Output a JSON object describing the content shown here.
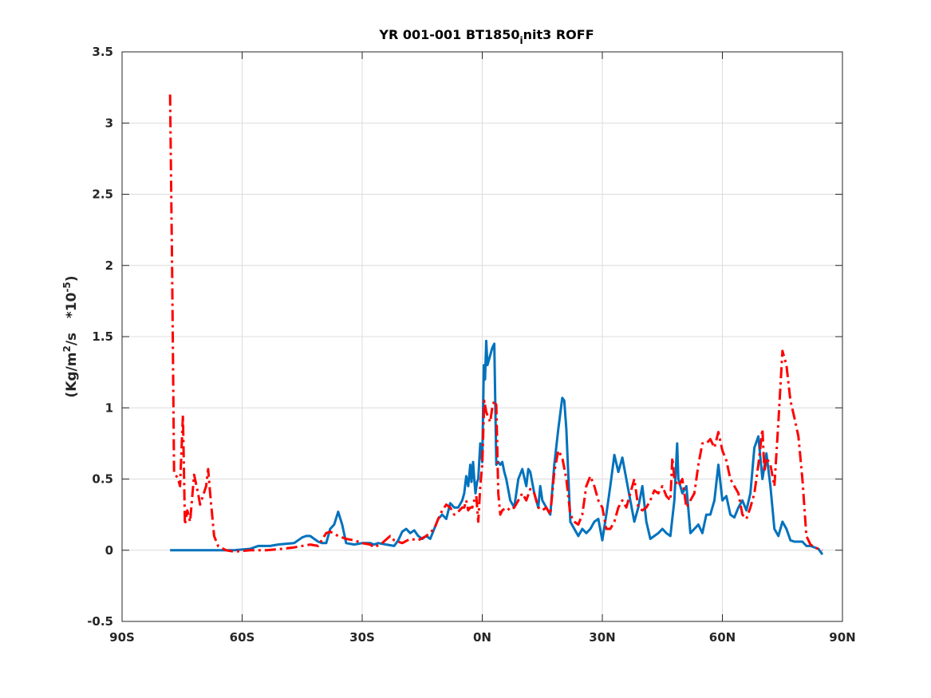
{
  "chart_data": {
    "type": "line",
    "title_parts": {
      "main": "YR 001-001 BT1850",
      "sub": "i",
      "tail": "nit3 ROFF"
    },
    "ylabel_parts": {
      "a": "(Kg/m",
      "sup1": "2",
      "b": "/s   *10",
      "sup2": "-5",
      "c": ")"
    },
    "xlabel": "",
    "xlim": [
      -90,
      90
    ],
    "ylim": [
      -0.5,
      3.5
    ],
    "xticks": [
      -90,
      -60,
      -30,
      0,
      30,
      60,
      90
    ],
    "xtick_labels": [
      "90S",
      "60S",
      "30S",
      "0N",
      "30N",
      "60N",
      "90N"
    ],
    "yticks": [
      -0.5,
      0,
      0.5,
      1,
      1.5,
      2,
      2.5,
      3,
      3.5
    ],
    "ytick_labels": [
      "-0.5",
      "0",
      "0.5",
      "1",
      "1.5",
      "2",
      "2.5",
      "3",
      "3.5"
    ],
    "grid": true,
    "box": true,
    "series": [
      {
        "color": "#0072BD",
        "style": "solid",
        "points": [
          [
            -78,
            0
          ],
          [
            -70,
            0
          ],
          [
            -62,
            0
          ],
          [
            -58,
            0.01
          ],
          [
            -56,
            0.03
          ],
          [
            -53,
            0.03
          ],
          [
            -51,
            0.04
          ],
          [
            -47,
            0.05
          ],
          [
            -46,
            0.07
          ],
          [
            -45,
            0.09
          ],
          [
            -44,
            0.1
          ],
          [
            -43,
            0.1
          ],
          [
            -42,
            0.08
          ],
          [
            -41,
            0.06
          ],
          [
            -40,
            0.05
          ],
          [
            -39,
            0.05
          ],
          [
            -38,
            0.15
          ],
          [
            -37,
            0.18
          ],
          [
            -36,
            0.27
          ],
          [
            -35,
            0.18
          ],
          [
            -34,
            0.05
          ],
          [
            -32,
            0.04
          ],
          [
            -30,
            0.05
          ],
          [
            -28,
            0.05
          ],
          [
            -27,
            0.04
          ],
          [
            -26,
            0.05
          ],
          [
            -24,
            0.04
          ],
          [
            -22,
            0.03
          ],
          [
            -21,
            0.07
          ],
          [
            -20,
            0.13
          ],
          [
            -19,
            0.15
          ],
          [
            -18,
            0.12
          ],
          [
            -17,
            0.14
          ],
          [
            -16,
            0.1
          ],
          [
            -15,
            0.08
          ],
          [
            -14,
            0.1
          ],
          [
            -13,
            0.08
          ],
          [
            -12,
            0.15
          ],
          [
            -11,
            0.22
          ],
          [
            -10,
            0.25
          ],
          [
            -9,
            0.22
          ],
          [
            -8,
            0.33
          ],
          [
            -7,
            0.3
          ],
          [
            -6,
            0.3
          ],
          [
            -5,
            0.35
          ],
          [
            -4.5,
            0.4
          ],
          [
            -4,
            0.52
          ],
          [
            -3.5,
            0.45
          ],
          [
            -3,
            0.6
          ],
          [
            -2.7,
            0.48
          ],
          [
            -2.3,
            0.62
          ],
          [
            -2,
            0.5
          ],
          [
            -1.7,
            0.4
          ],
          [
            -1.3,
            0.48
          ],
          [
            -1,
            0.5
          ],
          [
            -0.5,
            0.75
          ],
          [
            0,
            0.62
          ],
          [
            0.4,
            1.3
          ],
          [
            0.7,
            1.2
          ],
          [
            1,
            1.47
          ],
          [
            1.3,
            1.3
          ],
          [
            2,
            1.37
          ],
          [
            2.5,
            1.42
          ],
          [
            3,
            1.45
          ],
          [
            3.5,
            0.6
          ],
          [
            4,
            0.62
          ],
          [
            4.5,
            0.6
          ],
          [
            5,
            0.62
          ],
          [
            5.5,
            0.55
          ],
          [
            6,
            0.5
          ],
          [
            7,
            0.35
          ],
          [
            8,
            0.3
          ],
          [
            9,
            0.5
          ],
          [
            10,
            0.57
          ],
          [
            11,
            0.45
          ],
          [
            11.5,
            0.57
          ],
          [
            12,
            0.55
          ],
          [
            13,
            0.4
          ],
          [
            14,
            0.3
          ],
          [
            14.5,
            0.45
          ],
          [
            15,
            0.35
          ],
          [
            16,
            0.3
          ],
          [
            17,
            0.25
          ],
          [
            18,
            0.6
          ],
          [
            19,
            0.85
          ],
          [
            20,
            1.07
          ],
          [
            20.5,
            1.05
          ],
          [
            21,
            0.85
          ],
          [
            22,
            0.2
          ],
          [
            23,
            0.15
          ],
          [
            24,
            0.1
          ],
          [
            25,
            0.15
          ],
          [
            26,
            0.12
          ],
          [
            27,
            0.15
          ],
          [
            28,
            0.2
          ],
          [
            29,
            0.22
          ],
          [
            30,
            0.07
          ],
          [
            31,
            0.25
          ],
          [
            32,
            0.45
          ],
          [
            33,
            0.67
          ],
          [
            34,
            0.55
          ],
          [
            35,
            0.65
          ],
          [
            36,
            0.5
          ],
          [
            37,
            0.35
          ],
          [
            38,
            0.2
          ],
          [
            39,
            0.3
          ],
          [
            40,
            0.45
          ],
          [
            41,
            0.2
          ],
          [
            42,
            0.08
          ],
          [
            43,
            0.1
          ],
          [
            44,
            0.12
          ],
          [
            45,
            0.15
          ],
          [
            46,
            0.12
          ],
          [
            47,
            0.1
          ],
          [
            48,
            0.35
          ],
          [
            48.7,
            0.75
          ],
          [
            49,
            0.5
          ],
          [
            50,
            0.4
          ],
          [
            51,
            0.45
          ],
          [
            52,
            0.12
          ],
          [
            53,
            0.15
          ],
          [
            54,
            0.18
          ],
          [
            55,
            0.12
          ],
          [
            56,
            0.25
          ],
          [
            57,
            0.25
          ],
          [
            58,
            0.35
          ],
          [
            59,
            0.6
          ],
          [
            60,
            0.35
          ],
          [
            61,
            0.38
          ],
          [
            62,
            0.25
          ],
          [
            63,
            0.23
          ],
          [
            64,
            0.3
          ],
          [
            65,
            0.35
          ],
          [
            66,
            0.28
          ],
          [
            67,
            0.4
          ],
          [
            68,
            0.72
          ],
          [
            69,
            0.8
          ],
          [
            70,
            0.5
          ],
          [
            71,
            0.68
          ],
          [
            72,
            0.45
          ],
          [
            73,
            0.15
          ],
          [
            74,
            0.1
          ],
          [
            75,
            0.2
          ],
          [
            76,
            0.15
          ],
          [
            77,
            0.07
          ],
          [
            78,
            0.06
          ],
          [
            80,
            0.06
          ],
          [
            81,
            0.03
          ],
          [
            82,
            0.03
          ],
          [
            83,
            0.02
          ],
          [
            84,
            0.01
          ],
          [
            85,
            -0.03
          ]
        ]
      },
      {
        "color": "#FF0000",
        "style": "dashdot",
        "points": [
          [
            -78,
            3.2
          ],
          [
            -77.5,
            2.0
          ],
          [
            -77,
            0.55
          ],
          [
            -76,
            0.5
          ],
          [
            -75.5,
            0.45
          ],
          [
            -74.8,
            0.95
          ],
          [
            -74.3,
            0.18
          ],
          [
            -73.7,
            0.28
          ],
          [
            -73,
            0.2
          ],
          [
            -72,
            0.53
          ],
          [
            -71,
            0.4
          ],
          [
            -70.5,
            0.32
          ],
          [
            -69,
            0.45
          ],
          [
            -68.5,
            0.57
          ],
          [
            -68,
            0.4
          ],
          [
            -67,
            0.1
          ],
          [
            -66,
            0.03
          ],
          [
            -64,
            0.0
          ],
          [
            -62,
            -0.01
          ],
          [
            -58,
            0.0
          ],
          [
            -54,
            0.0
          ],
          [
            -50,
            0.01
          ],
          [
            -47,
            0.02
          ],
          [
            -45,
            0.03
          ],
          [
            -43,
            0.04
          ],
          [
            -41,
            0.03
          ],
          [
            -39,
            0.12
          ],
          [
            -38,
            0.13
          ],
          [
            -36,
            0.1
          ],
          [
            -34,
            0.08
          ],
          [
            -32,
            0.07
          ],
          [
            -30,
            0.05
          ],
          [
            -28,
            0.04
          ],
          [
            -27,
            0.02
          ],
          [
            -25,
            0.05
          ],
          [
            -23,
            0.1
          ],
          [
            -22,
            0.07
          ],
          [
            -20,
            0.05
          ],
          [
            -18,
            0.08
          ],
          [
            -16,
            0.07
          ],
          [
            -14,
            0.1
          ],
          [
            -12,
            0.15
          ],
          [
            -11,
            0.22
          ],
          [
            -10,
            0.28
          ],
          [
            -9,
            0.32
          ],
          [
            -8,
            0.3
          ],
          [
            -7,
            0.25
          ],
          [
            -6,
            0.27
          ],
          [
            -5,
            0.3
          ],
          [
            -4.5,
            0.3
          ],
          [
            -4,
            0.35
          ],
          [
            -3.5,
            0.28
          ],
          [
            -3,
            0.3
          ],
          [
            -2.5,
            0.3
          ],
          [
            -2,
            0.35
          ],
          [
            -1.5,
            0.38
          ],
          [
            -1,
            0.2
          ],
          [
            -0.5,
            0.45
          ],
          [
            0,
            0.6
          ],
          [
            0.5,
            1.05
          ],
          [
            1,
            0.97
          ],
          [
            2,
            0.9
          ],
          [
            2.5,
            1.0
          ],
          [
            3,
            1.05
          ],
          [
            3.5,
            1.02
          ],
          [
            4,
            0.4
          ],
          [
            4.5,
            0.25
          ],
          [
            5,
            0.28
          ],
          [
            6,
            0.3
          ],
          [
            7,
            0.28
          ],
          [
            8,
            0.3
          ],
          [
            9,
            0.35
          ],
          [
            10,
            0.4
          ],
          [
            11,
            0.35
          ],
          [
            12,
            0.43
          ],
          [
            13,
            0.4
          ],
          [
            14,
            0.3
          ],
          [
            15,
            0.28
          ],
          [
            16,
            0.3
          ],
          [
            17,
            0.25
          ],
          [
            18,
            0.55
          ],
          [
            19,
            0.7
          ],
          [
            20,
            0.65
          ],
          [
            21,
            0.5
          ],
          [
            22,
            0.25
          ],
          [
            23,
            0.2
          ],
          [
            24,
            0.18
          ],
          [
            25,
            0.25
          ],
          [
            26,
            0.45
          ],
          [
            27,
            0.52
          ],
          [
            28,
            0.45
          ],
          [
            29,
            0.35
          ],
          [
            30,
            0.3
          ],
          [
            31,
            0.15
          ],
          [
            32,
            0.15
          ],
          [
            33,
            0.2
          ],
          [
            34,
            0.3
          ],
          [
            35,
            0.35
          ],
          [
            36,
            0.3
          ],
          [
            37,
            0.4
          ],
          [
            38,
            0.5
          ],
          [
            39,
            0.3
          ],
          [
            40,
            0.28
          ],
          [
            41,
            0.3
          ],
          [
            42,
            0.35
          ],
          [
            43,
            0.42
          ],
          [
            44,
            0.4
          ],
          [
            45,
            0.45
          ],
          [
            46,
            0.38
          ],
          [
            47,
            0.35
          ],
          [
            47.5,
            0.65
          ],
          [
            48,
            0.5
          ],
          [
            49,
            0.45
          ],
          [
            50,
            0.5
          ],
          [
            51,
            0.3
          ],
          [
            52,
            0.35
          ],
          [
            53,
            0.4
          ],
          [
            54,
            0.6
          ],
          [
            55,
            0.75
          ],
          [
            56,
            0.75
          ],
          [
            57,
            0.78
          ],
          [
            58,
            0.72
          ],
          [
            59,
            0.83
          ],
          [
            60,
            0.7
          ],
          [
            61,
            0.63
          ],
          [
            62,
            0.5
          ],
          [
            63,
            0.45
          ],
          [
            64,
            0.4
          ],
          [
            65,
            0.25
          ],
          [
            66,
            0.22
          ],
          [
            67,
            0.3
          ],
          [
            68,
            0.4
          ],
          [
            69,
            0.6
          ],
          [
            70,
            0.85
          ],
          [
            70.5,
            0.55
          ],
          [
            71,
            0.65
          ],
          [
            72,
            0.6
          ],
          [
            73,
            0.45
          ],
          [
            74,
            0.9
          ],
          [
            75,
            1.4
          ],
          [
            76,
            1.3
          ],
          [
            77,
            1.05
          ],
          [
            78,
            0.93
          ],
          [
            79,
            0.8
          ],
          [
            80,
            0.5
          ],
          [
            81,
            0.1
          ],
          [
            82,
            0.04
          ],
          [
            83,
            0.02
          ],
          [
            84,
            0.01
          ],
          [
            85,
            0.0
          ]
        ]
      }
    ]
  }
}
